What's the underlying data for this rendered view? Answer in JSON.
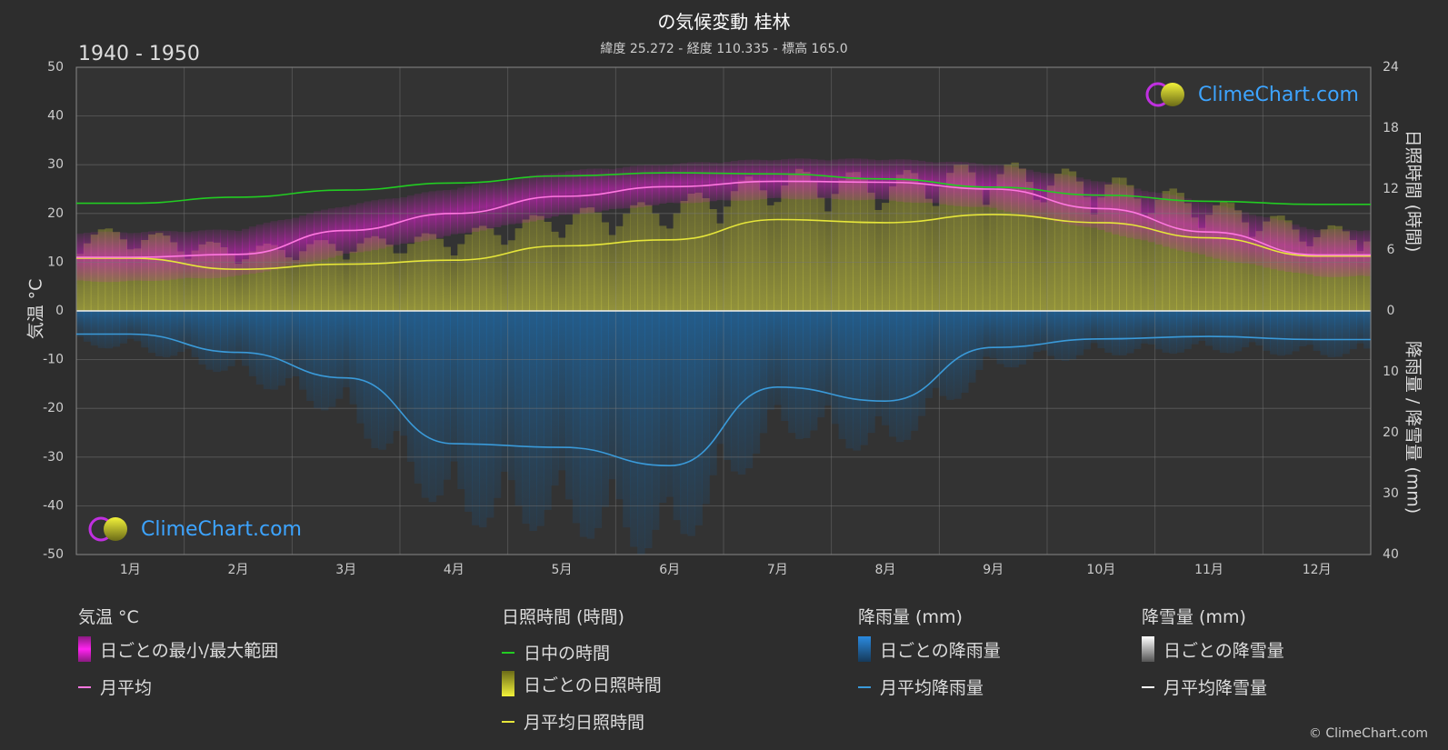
{
  "header": {
    "title": "の気候変動 桂林",
    "subtitle": "緯度 25.272 - 経度 110.335 - 標高 165.0",
    "period": "1940 - 1950"
  },
  "axes": {
    "left_title": "気温 °C",
    "right_top_title": "日照時間 (時間)",
    "right_bottom_title": "降雨量 / 降雪量 (mm)"
  },
  "chart_data": {
    "type": "line",
    "categories": [
      "1月",
      "2月",
      "3月",
      "4月",
      "5月",
      "6月",
      "7月",
      "8月",
      "9月",
      "10月",
      "11月",
      "12月"
    ],
    "left_axis": {
      "label": "気温 °C",
      "ylim": [
        -50,
        50
      ],
      "ticks": [
        50,
        40,
        30,
        20,
        10,
        0,
        -10,
        -20,
        -30,
        -40,
        -50
      ]
    },
    "right_axis_sunshine": {
      "label": "日照時間 (時間)",
      "ylim": [
        0,
        24
      ],
      "ticks": [
        24,
        18,
        12,
        6,
        0
      ]
    },
    "right_axis_precip": {
      "label": "降雨量 / 降雪量 (mm)",
      "ylim": [
        0,
        40
      ],
      "ticks": [
        0,
        10,
        20,
        30,
        40
      ]
    },
    "grid": true,
    "series": [
      {
        "name": "日中の時間",
        "axis": "sunshine",
        "color": "#22cc22",
        "values": [
          10.6,
          11.2,
          11.9,
          12.6,
          13.3,
          13.6,
          13.5,
          13.0,
          12.2,
          11.4,
          10.8,
          10.5
        ]
      },
      {
        "name": "月平均日照時間",
        "axis": "sunshine",
        "color": "#e6e63a",
        "values": [
          5.2,
          4.1,
          4.6,
          5.0,
          6.4,
          7.0,
          9.0,
          8.7,
          9.5,
          8.7,
          7.2,
          5.4
        ]
      },
      {
        "name": "月平均",
        "axis": "temperature",
        "color": "#ff77e0",
        "values": [
          11.0,
          11.6,
          16.5,
          20.0,
          23.5,
          25.5,
          26.6,
          26.4,
          25.0,
          21.0,
          16.2,
          11.5
        ]
      },
      {
        "name": "月平均降雨量",
        "axis": "precip",
        "color": "#3a9ad9",
        "values": [
          3.8,
          6.8,
          11.0,
          21.8,
          22.4,
          25.4,
          12.5,
          14.8,
          6.0,
          4.6,
          4.2,
          4.7
        ]
      },
      {
        "name": "月平均降雪量",
        "axis": "precip",
        "color": "#ffffff",
        "values": [
          0,
          0,
          0,
          0,
          0,
          0,
          0,
          0,
          0,
          0,
          0,
          0
        ]
      }
    ],
    "daily_temperature_range": {
      "name": "日ごとの最小/最大範囲",
      "color": "#e020d0",
      "min": [
        7.0,
        8.0,
        12.5,
        16.5,
        20.5,
        23.0,
        24.0,
        23.7,
        22.0,
        17.5,
        12.0,
        8.0
      ],
      "max": [
        15.0,
        15.5,
        20.5,
        24.0,
        27.5,
        29.0,
        30.0,
        30.0,
        29.0,
        25.5,
        21.0,
        15.5
      ]
    },
    "daily_sunshine": {
      "name": "日ごとの日照時間",
      "color": "#a8a83a"
    },
    "daily_rain": {
      "name": "日ごとの降雨量",
      "color": "#1b5a8a"
    },
    "daily_snow": {
      "name": "日ごとの降雪量",
      "color": "#ffffff"
    }
  },
  "legend": {
    "temperature": {
      "heading": "気温 °C",
      "range_label": "日ごとの最小/最大範囲",
      "mean_label": "月平均"
    },
    "sunshine": {
      "heading": "日照時間 (時間)",
      "daylight_label": "日中の時間",
      "daily_label": "日ごとの日照時間",
      "mean_label": "月平均日照時間"
    },
    "rain": {
      "heading": "降雨量 (mm)",
      "daily_label": "日ごとの降雨量",
      "mean_label": "月平均降雨量"
    },
    "snow": {
      "heading": "降雪量 (mm)",
      "daily_label": "日ごとの降雪量",
      "mean_label": "月平均降雪量"
    }
  },
  "branding": {
    "logo_text": "ClimeChart.com",
    "copyright": "© ClimeChart.com"
  }
}
